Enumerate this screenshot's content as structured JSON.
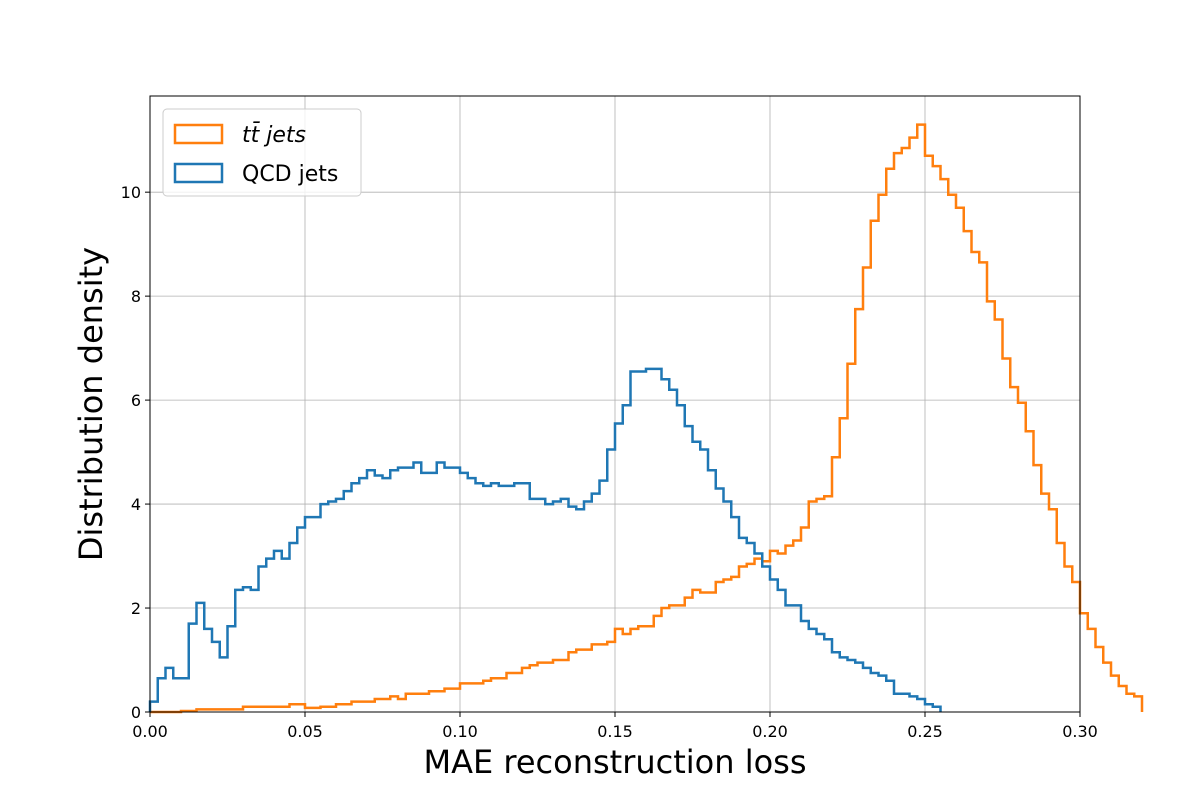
{
  "chart_data": {
    "type": "histogram-step",
    "xlabel": "MAE reconstruction loss",
    "ylabel": "Distribution density",
    "xlim": [
      0.0,
      0.3
    ],
    "ylim": [
      0,
      11.85
    ],
    "xticks": [
      0.0,
      0.05,
      0.1,
      0.15,
      0.2,
      0.25,
      0.3
    ],
    "xtick_labels": [
      "0.00",
      "0.05",
      "0.10",
      "0.15",
      "0.20",
      "0.25",
      "0.30"
    ],
    "yticks": [
      0,
      2,
      4,
      6,
      8,
      10
    ],
    "ytick_labels": [
      "0",
      "2",
      "4",
      "6",
      "8",
      "10"
    ],
    "grid": true,
    "legend_position": "top-left",
    "bin_edges_start": 0.0,
    "bin_width": 0.0025,
    "series": [
      {
        "name": "tt̄ jets",
        "color": "#ff7f0e",
        "values": [
          0.0,
          0.0,
          0.0,
          0.0,
          0.02,
          0.02,
          0.05,
          0.05,
          0.05,
          0.05,
          0.05,
          0.05,
          0.1,
          0.1,
          0.1,
          0.1,
          0.1,
          0.1,
          0.15,
          0.15,
          0.08,
          0.08,
          0.1,
          0.1,
          0.15,
          0.15,
          0.2,
          0.2,
          0.2,
          0.25,
          0.25,
          0.3,
          0.25,
          0.35,
          0.35,
          0.35,
          0.4,
          0.4,
          0.45,
          0.45,
          0.55,
          0.55,
          0.55,
          0.6,
          0.65,
          0.65,
          0.75,
          0.75,
          0.85,
          0.9,
          0.95,
          0.95,
          1.0,
          1.0,
          1.15,
          1.2,
          1.2,
          1.3,
          1.3,
          1.35,
          1.6,
          1.5,
          1.6,
          1.65,
          1.65,
          1.85,
          2.0,
          2.05,
          2.05,
          2.2,
          2.35,
          2.3,
          2.3,
          2.5,
          2.55,
          2.6,
          2.8,
          2.85,
          2.95,
          2.9,
          3.1,
          3.05,
          3.2,
          3.3,
          3.55,
          4.05,
          4.1,
          4.15,
          4.9,
          5.65,
          6.7,
          7.75,
          8.55,
          9.45,
          9.95,
          10.45,
          10.75,
          10.85,
          11.05,
          11.3,
          10.7,
          10.5,
          10.25,
          9.95,
          9.7,
          9.25,
          8.85,
          8.65,
          7.9,
          7.55,
          6.8,
          6.25,
          5.95,
          5.4,
          4.75,
          4.2,
          3.9,
          3.25,
          2.8,
          2.5,
          1.9,
          1.6,
          1.25,
          0.95,
          0.7,
          0.5,
          0.35,
          0.3
        ]
      },
      {
        "name": "QCD jets",
        "color": "#1f77b4",
        "values": [
          0.2,
          0.65,
          0.85,
          0.65,
          0.65,
          1.7,
          2.1,
          1.6,
          1.35,
          1.05,
          1.65,
          2.35,
          2.4,
          2.35,
          2.8,
          2.95,
          3.1,
          2.95,
          3.25,
          3.55,
          3.75,
          3.75,
          4.0,
          4.05,
          4.1,
          4.25,
          4.4,
          4.5,
          4.65,
          4.55,
          4.5,
          4.65,
          4.7,
          4.7,
          4.8,
          4.6,
          4.6,
          4.8,
          4.7,
          4.7,
          4.6,
          4.5,
          4.4,
          4.35,
          4.4,
          4.35,
          4.35,
          4.4,
          4.4,
          4.1,
          4.1,
          4.0,
          4.05,
          4.1,
          3.95,
          3.9,
          4.05,
          4.2,
          4.45,
          5.05,
          5.55,
          5.9,
          6.55,
          6.55,
          6.6,
          6.6,
          6.4,
          6.2,
          5.9,
          5.5,
          5.2,
          5.05,
          4.65,
          4.3,
          4.05,
          3.75,
          3.35,
          3.25,
          3.05,
          2.8,
          2.55,
          2.35,
          2.05,
          2.05,
          1.75,
          1.6,
          1.5,
          1.4,
          1.15,
          1.05,
          1.0,
          0.95,
          0.85,
          0.75,
          0.7,
          0.6,
          0.35,
          0.35,
          0.3,
          0.25,
          0.15,
          0.1
        ]
      }
    ]
  },
  "legend": {
    "items": [
      {
        "label": "tt̄ jets",
        "color": "#ff7f0e"
      },
      {
        "label": "QCD jets",
        "color": "#1f77b4"
      }
    ]
  }
}
